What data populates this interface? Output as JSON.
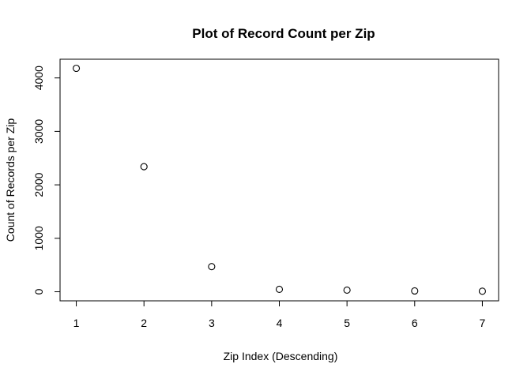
{
  "chart_data": {
    "type": "scatter",
    "title": "Plot of Record Count per Zip",
    "xlabel": "Zip Index (Descending)",
    "ylabel": "Count of Records per Zip",
    "x": [
      1,
      2,
      3,
      4,
      5,
      6,
      7
    ],
    "y": [
      4180,
      2340,
      470,
      45,
      30,
      15,
      10
    ],
    "xlim": [
      0.76,
      7.24
    ],
    "ylim": [
      -170,
      4350
    ],
    "x_ticks": [
      1,
      2,
      3,
      4,
      5,
      6,
      7
    ],
    "y_ticks": [
      0,
      1000,
      2000,
      3000,
      4000
    ],
    "marker": "open-circle",
    "grid": false,
    "legend": "none",
    "colors": {
      "marker": "#000000",
      "axis": "#000000",
      "background": "#ffffff"
    }
  }
}
